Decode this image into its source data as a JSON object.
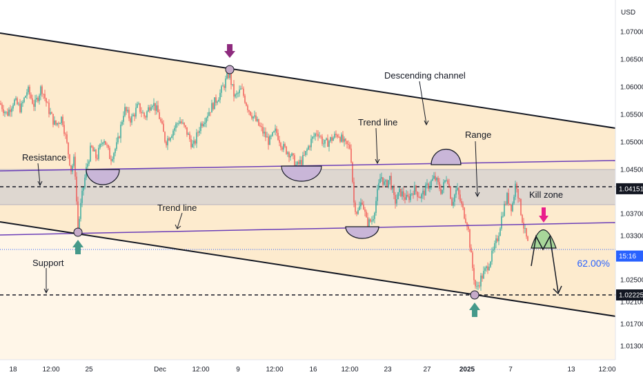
{
  "chart_data": {
    "type": "candlestick",
    "currency": "USD",
    "x_tick_labels": [
      "18",
      "12:00",
      "25",
      "Dec",
      "12:00",
      "9",
      "12:00",
      "16",
      "12:00",
      "23",
      "27",
      "2025",
      "7",
      "13",
      "12:00"
    ],
    "y_tick_labels": [
      "1.07000",
      "1.06500",
      "1.06000",
      "1.05500",
      "1.05000",
      "1.04500",
      "1.03700",
      "1.03300",
      "1.02500",
      "1.02100",
      "1.01700",
      "1.01300"
    ],
    "ylim": [
      1.0105,
      1.0745
    ],
    "price_tags": [
      {
        "label": "1.04151",
        "value": 1.04151,
        "style": "dark"
      },
      {
        "label": "1.02225",
        "value": 1.02225,
        "style": "dark"
      },
      {
        "label": "15:16",
        "value": 1.0293,
        "style": "blue"
      }
    ],
    "annotations": [
      {
        "text": "Descending channel"
      },
      {
        "text": "Trend line"
      },
      {
        "text": "Range"
      },
      {
        "text": "Resistance"
      },
      {
        "text": "Kill zone"
      },
      {
        "text": "Trend line"
      },
      {
        "text": "Support"
      }
    ],
    "fib_label": "62.00%",
    "levels": {
      "resistance": 1.04151,
      "support": 1.02225,
      "range_top": 1.0445,
      "range_bottom": 1.0387,
      "current": 1.0293
    },
    "price_path": [
      [
        0,
        1.057
      ],
      [
        10,
        1.055
      ],
      [
        20,
        1.0575
      ],
      [
        30,
        1.056
      ],
      [
        40,
        1.0595
      ],
      [
        50,
        1.0565
      ],
      [
        60,
        1.06
      ],
      [
        70,
        1.056
      ],
      [
        80,
        1.053
      ],
      [
        90,
        1.0545
      ],
      [
        97,
        1.0495
      ],
      [
        103,
        1.045
      ],
      [
        108,
        1.047
      ],
      [
        113,
        1.034
      ],
      [
        118,
        1.0395
      ],
      [
        125,
        1.045
      ],
      [
        132,
        1.049
      ],
      [
        140,
        1.047
      ],
      [
        150,
        1.051
      ],
      [
        160,
        1.047
      ],
      [
        170,
        1.0495
      ],
      [
        180,
        1.056
      ],
      [
        190,
        1.054
      ],
      [
        200,
        1.0565
      ],
      [
        210,
        1.0545
      ],
      [
        220,
        1.0575
      ],
      [
        230,
        1.055
      ],
      [
        240,
        1.05
      ],
      [
        250,
        1.052
      ],
      [
        260,
        1.054
      ],
      [
        270,
        1.052
      ],
      [
        280,
        1.049
      ],
      [
        290,
        1.053
      ],
      [
        300,
        1.055
      ],
      [
        310,
        1.057
      ],
      [
        320,
        1.059
      ],
      [
        332,
        1.0625
      ],
      [
        340,
        1.058
      ],
      [
        350,
        1.0595
      ],
      [
        360,
        1.056
      ],
      [
        370,
        1.054
      ],
      [
        380,
        1.052
      ],
      [
        390,
        1.05
      ],
      [
        400,
        1.052
      ],
      [
        410,
        1.049
      ],
      [
        420,
        1.048
      ],
      [
        430,
        1.0455
      ],
      [
        440,
        1.047
      ],
      [
        450,
        1.05
      ],
      [
        460,
        1.052
      ],
      [
        470,
        1.0495
      ],
      [
        480,
        1.0505
      ],
      [
        490,
        1.0515
      ],
      [
        500,
        1.0495
      ],
      [
        508,
        1.049
      ],
      [
        513,
        1.039
      ],
      [
        518,
        1.037
      ],
      [
        525,
        1.0395
      ],
      [
        532,
        1.035
      ],
      [
        540,
        1.036
      ],
      [
        546,
        1.04
      ],
      [
        552,
        1.044
      ],
      [
        558,
        1.042
      ],
      [
        565,
        1.0435
      ],
      [
        572,
        1.039
      ],
      [
        580,
        1.041
      ],
      [
        590,
        1.0395
      ],
      [
        600,
        1.0415
      ],
      [
        610,
        1.04
      ],
      [
        620,
        1.042
      ],
      [
        630,
        1.0435
      ],
      [
        640,
        1.041
      ],
      [
        648,
        1.044
      ],
      [
        655,
        1.039
      ],
      [
        662,
        1.0415
      ],
      [
        670,
        1.038
      ],
      [
        678,
        1.035
      ],
      [
        684,
        1.028
      ],
      [
        690,
        1.023
      ],
      [
        696,
        1.025
      ],
      [
        705,
        1.027
      ],
      [
        715,
        1.03
      ],
      [
        722,
        1.033
      ],
      [
        728,
        1.037
      ],
      [
        735,
        1.04
      ],
      [
        742,
        1.038
      ],
      [
        748,
        1.043
      ],
      [
        754,
        1.038
      ],
      [
        760,
        1.034
      ],
      [
        766,
        1.031
      ]
    ]
  }
}
